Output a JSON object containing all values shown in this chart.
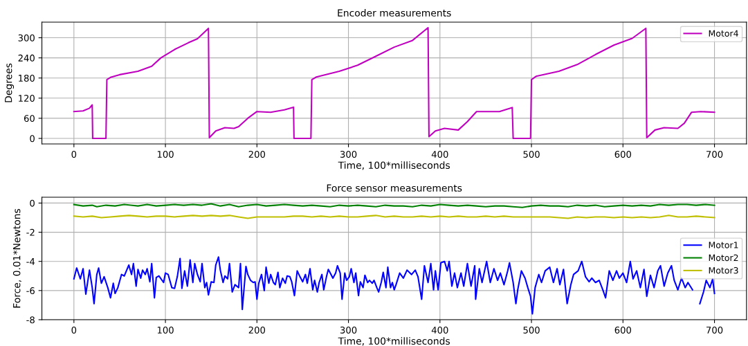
{
  "chart_data": [
    {
      "type": "line",
      "title": "Encoder measurements",
      "xlabel": "Time, 100*milliseconds",
      "ylabel": "Degrees",
      "xlim": [
        -35,
        735
      ],
      "ylim": [
        -16.5,
        346.5
      ],
      "xticks": [
        0,
        100,
        200,
        300,
        400,
        500,
        600,
        700
      ],
      "yticks": [
        0,
        60,
        120,
        180,
        240,
        300
      ],
      "grid": true,
      "legend": "top right",
      "series": [
        {
          "name": "Motor4",
          "color": "#bf00bf",
          "x": [
            0,
            10,
            17,
            20,
            20.5,
            35,
            36,
            40,
            50,
            70,
            85,
            95,
            110,
            125,
            135,
            147,
            148,
            155,
            165,
            175,
            180,
            190,
            200,
            215,
            230,
            240,
            240.5,
            259,
            260,
            265,
            290,
            310,
            330,
            350,
            370,
            387,
            388,
            395,
            405,
            420,
            430,
            440,
            465,
            479,
            480,
            499,
            500,
            505,
            530,
            550,
            570,
            590,
            610,
            625,
            626,
            635,
            645,
            660,
            667,
            675,
            685,
            700
          ],
          "values": [
            80,
            82,
            90,
            100,
            0,
            0,
            175,
            182,
            190,
            200,
            215,
            240,
            265,
            285,
            297,
            328,
            2,
            22,
            32,
            30,
            35,
            60,
            80,
            78,
            85,
            93,
            0,
            0,
            175,
            183,
            200,
            218,
            245,
            272,
            292,
            330,
            5,
            22,
            30,
            25,
            50,
            80,
            80,
            92,
            0,
            0,
            175,
            185,
            200,
            220,
            250,
            278,
            298,
            328,
            2,
            25,
            32,
            30,
            45,
            78,
            80,
            78
          ]
        }
      ]
    },
    {
      "type": "line",
      "title": "Force sensor measurements",
      "xlabel": "Time, 100*milliseconds",
      "ylabel": "Force, 0.01*Newtons",
      "xlim": [
        -35,
        735
      ],
      "ylim": [
        -8,
        0.4
      ],
      "xticks": [
        0,
        100,
        200,
        300,
        400,
        500,
        600,
        700
      ],
      "yticks": [
        -8,
        -6,
        -4,
        -2,
        0
      ],
      "grid": true,
      "legend": "right",
      "series": [
        {
          "name": "Motor1",
          "color": "#0000ff",
          "x": [
            0,
            3,
            7,
            10,
            13,
            17,
            20,
            22,
            25,
            27,
            30,
            33,
            37,
            40,
            43,
            45,
            48,
            52,
            55,
            60,
            63,
            65,
            68,
            70,
            73,
            75,
            78,
            80,
            83,
            85,
            88,
            90,
            93,
            98,
            100,
            103,
            107,
            110,
            113,
            116,
            118,
            121,
            124,
            127,
            130,
            132,
            135,
            138,
            140,
            143,
            145,
            147,
            150,
            153,
            155,
            158,
            160,
            163,
            165,
            168,
            170,
            173,
            176,
            180,
            182,
            184,
            186,
            188,
            190,
            193,
            196,
            198,
            200,
            202,
            205,
            208,
            210,
            213,
            215,
            218,
            220,
            223,
            225,
            228,
            231,
            233,
            236,
            238,
            241,
            244,
            247,
            250,
            253,
            255,
            258,
            261,
            263,
            266,
            268,
            271,
            273,
            276,
            278,
            281,
            283,
            286,
            288,
            291,
            293,
            296,
            298,
            301,
            303,
            306,
            308,
            311,
            313,
            316,
            318,
            321,
            323,
            326,
            328,
            331,
            333,
            336,
            338,
            341,
            343,
            346,
            348,
            350,
            352,
            356,
            360,
            364,
            369,
            373,
            376,
            380,
            383,
            387,
            390,
            393,
            395,
            398,
            401,
            405,
            408,
            410,
            413,
            416,
            419,
            423,
            426,
            430,
            434,
            438,
            439,
            443,
            446,
            451,
            455,
            459,
            463,
            466,
            470,
            474,
            476,
            480,
            483,
            485,
            489,
            493,
            496,
            499,
            501,
            504,
            508,
            511,
            515,
            520,
            524,
            528,
            531,
            535,
            539,
            543,
            546,
            551,
            555,
            559,
            563,
            566,
            570,
            574,
            578,
            581,
            585,
            589,
            593,
            596,
            600,
            604,
            608,
            611,
            615,
            619,
            623,
            626,
            630,
            634,
            638,
            641,
            645,
            649,
            653,
            656,
            660,
            664,
            668,
            671,
            676,
            680,
            684,
            688,
            691,
            695,
            698,
            700
          ],
          "values": [
            -5.2,
            -4.45,
            -5.2,
            -4.5,
            -6.25,
            -4.6,
            -5.8,
            -6.9,
            -4.9,
            -4.45,
            -5.5,
            -5.05,
            -5.8,
            -6.5,
            -5.5,
            -6.2,
            -5.8,
            -4.9,
            -5.0,
            -4.25,
            -4.9,
            -4.15,
            -5.7,
            -4.55,
            -5.15,
            -4.6,
            -4.9,
            -4.5,
            -5.4,
            -4.15,
            -6.5,
            -5.1,
            -5.0,
            -5.45,
            -4.8,
            -4.9,
            -5.8,
            -5.85,
            -5.05,
            -3.8,
            -5.85,
            -4.65,
            -5.7,
            -3.9,
            -5.45,
            -4.15,
            -4.9,
            -5.4,
            -4.15,
            -5.8,
            -5.45,
            -6.3,
            -5.4,
            -5.45,
            -4.25,
            -3.7,
            -4.6,
            -5.45,
            -5.0,
            -5.2,
            -4.15,
            -6.1,
            -5.6,
            -5.8,
            -4.15,
            -7.3,
            -5.8,
            -4.35,
            -4.9,
            -5.3,
            -5.45,
            -5.4,
            -6.6,
            -5.5,
            -4.9,
            -6.0,
            -4.4,
            -5.5,
            -4.9,
            -5.45,
            -5.6,
            -4.75,
            -5.8,
            -5.15,
            -5.5,
            -5.0,
            -5.05,
            -5.4,
            -6.35,
            -4.65,
            -5.05,
            -5.4,
            -4.9,
            -5.5,
            -4.5,
            -5.95,
            -5.3,
            -6.1,
            -5.45,
            -4.9,
            -5.95,
            -5.05,
            -4.55,
            -4.9,
            -5.15,
            -4.8,
            -4.3,
            -4.8,
            -6.6,
            -4.8,
            -5.3,
            -5.05,
            -4.5,
            -5.45,
            -4.8,
            -6.35,
            -5.4,
            -5.8,
            -4.95,
            -5.45,
            -5.3,
            -5.5,
            -5.3,
            -5.8,
            -6.1,
            -5.4,
            -4.75,
            -5.8,
            -4.4,
            -5.8,
            -5.45,
            -5.95,
            -5.6,
            -4.8,
            -5.15,
            -4.6,
            -4.9,
            -4.6,
            -5.05,
            -6.6,
            -4.3,
            -5.45,
            -4.15,
            -5.95,
            -4.65,
            -5.95,
            -4.1,
            -4.0,
            -4.65,
            -4.0,
            -5.7,
            -4.8,
            -5.8,
            -4.8,
            -5.7,
            -4.15,
            -5.7,
            -4.3,
            -6.6,
            -4.5,
            -5.45,
            -4.0,
            -5.45,
            -4.5,
            -5.3,
            -4.8,
            -5.6,
            -4.65,
            -4.1,
            -5.45,
            -6.9,
            -5.95,
            -4.65,
            -5.15,
            -5.8,
            -6.4,
            -7.6,
            -5.8,
            -4.9,
            -5.45,
            -4.65,
            -4.4,
            -5.45,
            -4.5,
            -5.6,
            -4.55,
            -6.9,
            -5.6,
            -4.9,
            -4.65,
            -4.0,
            -5.05,
            -5.4,
            -5.15,
            -5.45,
            -5.3,
            -5.95,
            -6.5,
            -4.65,
            -5.3,
            -4.65,
            -5.15,
            -4.8,
            -5.45,
            -4.0,
            -5.2,
            -4.65,
            -5.8,
            -4.55,
            -6.4,
            -4.95,
            -5.8,
            -4.65,
            -4.3,
            -5.7,
            -4.8,
            -4.3,
            -5.3,
            -5.95,
            -5.15,
            -5.8,
            -5.45,
            -5.95,
            null,
            -6.9,
            -6.1,
            -5.3,
            -5.8,
            -5.2,
            -6.2
          ]
        },
        {
          "name": "Motor2",
          "color": "#008000",
          "x": [
            0,
            10,
            20,
            25,
            35,
            45,
            55,
            62,
            70,
            80,
            90,
            100,
            110,
            120,
            130,
            140,
            150,
            160,
            170,
            180,
            190,
            200,
            210,
            220,
            230,
            240,
            250,
            260,
            270,
            280,
            290,
            300,
            310,
            320,
            330,
            340,
            350,
            360,
            370,
            380,
            390,
            400,
            410,
            420,
            430,
            440,
            450,
            460,
            470,
            480,
            490,
            500,
            510,
            520,
            530,
            540,
            550,
            560,
            570,
            580,
            590,
            600,
            610,
            620,
            630,
            640,
            650,
            660,
            670,
            680,
            690,
            700
          ],
          "values": [
            -0.1,
            -0.2,
            -0.15,
            -0.25,
            -0.15,
            -0.2,
            -0.1,
            -0.15,
            -0.2,
            -0.1,
            -0.2,
            -0.15,
            -0.1,
            -0.15,
            -0.1,
            -0.15,
            -0.05,
            -0.2,
            -0.1,
            -0.25,
            -0.15,
            -0.1,
            -0.2,
            -0.15,
            -0.1,
            -0.15,
            -0.2,
            -0.15,
            -0.2,
            -0.25,
            -0.15,
            -0.2,
            -0.15,
            -0.2,
            -0.25,
            -0.15,
            -0.2,
            -0.2,
            -0.25,
            -0.15,
            -0.2,
            -0.1,
            -0.15,
            -0.2,
            -0.15,
            -0.2,
            -0.25,
            -0.2,
            -0.2,
            -0.25,
            -0.3,
            -0.2,
            -0.15,
            -0.2,
            -0.2,
            -0.25,
            -0.15,
            -0.2,
            -0.15,
            -0.25,
            -0.2,
            -0.15,
            -0.2,
            -0.15,
            -0.2,
            -0.1,
            -0.15,
            -0.1,
            -0.1,
            -0.15,
            -0.1,
            -0.15
          ]
        },
        {
          "name": "Motor3",
          "color": "#bfbf00",
          "x": [
            0,
            10,
            20,
            30,
            40,
            50,
            60,
            70,
            80,
            90,
            100,
            110,
            120,
            130,
            140,
            150,
            160,
            170,
            180,
            190,
            200,
            210,
            220,
            230,
            240,
            250,
            260,
            270,
            280,
            290,
            300,
            310,
            320,
            330,
            340,
            350,
            360,
            370,
            380,
            390,
            400,
            410,
            420,
            430,
            440,
            450,
            460,
            470,
            480,
            490,
            500,
            510,
            520,
            530,
            540,
            550,
            560,
            570,
            580,
            590,
            600,
            610,
            620,
            630,
            640,
            650,
            660,
            670,
            680,
            690,
            700
          ],
          "values": [
            -0.9,
            -0.95,
            -0.9,
            -1.0,
            -0.95,
            -0.9,
            -0.85,
            -0.9,
            -0.95,
            -0.9,
            -0.9,
            -0.95,
            -0.9,
            -0.85,
            -0.9,
            -0.85,
            -0.9,
            -0.85,
            -0.95,
            -1.05,
            -0.95,
            -0.95,
            -0.95,
            -0.95,
            -0.9,
            -0.9,
            -0.95,
            -0.9,
            -0.95,
            -0.9,
            -0.95,
            -0.95,
            -0.9,
            -0.85,
            -0.95,
            -0.9,
            -0.95,
            -0.95,
            -0.9,
            -0.95,
            -0.9,
            -0.95,
            -0.9,
            -0.95,
            -0.95,
            -0.9,
            -0.95,
            -0.9,
            -0.95,
            -0.95,
            -0.95,
            -0.95,
            -0.95,
            -1.0,
            -1.05,
            -0.95,
            -1.0,
            -0.95,
            -0.95,
            -1.0,
            -0.95,
            -1.0,
            -0.95,
            -1.0,
            -0.95,
            -0.85,
            -0.95,
            -0.95,
            -0.9,
            -0.95,
            -1.0
          ]
        }
      ]
    }
  ]
}
